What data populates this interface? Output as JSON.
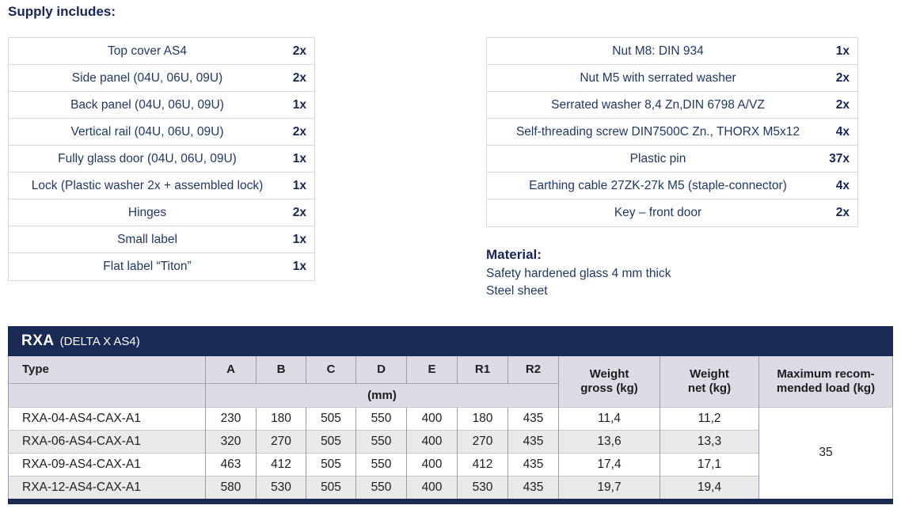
{
  "page": {
    "heading": "Supply includes:"
  },
  "supply": {
    "left_items": [
      {
        "label": "Top cover AS4",
        "qty": "2x"
      },
      {
        "label": "Side panel (04U, 06U, 09U)",
        "qty": "2x"
      },
      {
        "label": "Back panel (04U, 06U, 09U)",
        "qty": "1x"
      },
      {
        "label": "Vertical rail (04U, 06U, 09U)",
        "qty": "2x"
      },
      {
        "label": "Fully glass door (04U, 06U, 09U)",
        "qty": "1x"
      },
      {
        "label": "Lock (Plastic washer 2x + assembled lock)",
        "qty": "1x"
      },
      {
        "label": "Hinges",
        "qty": "2x"
      },
      {
        "label": "Small label",
        "qty": "1x"
      },
      {
        "label": "Flat label “Titon”",
        "qty": "1x"
      }
    ],
    "right_items": [
      {
        "label": "Nut M8: DIN 934",
        "qty": "1x"
      },
      {
        "label": "Nut M5 with serrated washer",
        "qty": "2x"
      },
      {
        "label": "Serrated washer 8,4 Zn,DIN 6798 A/VZ",
        "qty": "2x"
      },
      {
        "label": "Self-threading screw DIN7500C Zn., THORX M5x12",
        "qty": "4x"
      },
      {
        "label": "Plastic pin",
        "qty": "37x"
      },
      {
        "label": "Earthing cable 27ZK-27k M5 (staple-connector)",
        "qty": "4x"
      },
      {
        "label": "Key – front door",
        "qty": "2x"
      }
    ]
  },
  "material": {
    "heading": "Material:",
    "lines": [
      "Safety hardened glass 4 mm thick",
      "Steel sheet"
    ]
  },
  "spec_table": {
    "title": "RXA",
    "subtitle": "(DELTA X AS4)",
    "headers": {
      "type": "Type",
      "dims": [
        "A",
        "B",
        "C",
        "D",
        "E",
        "R1",
        "R2"
      ],
      "unit": "(mm)",
      "weight_gross_line1": "Weight",
      "weight_gross_line2": "gross (kg)",
      "weight_net_line1": "Weight",
      "weight_net_line2": "net (kg)",
      "max_load_line1": "Maximum recom-",
      "max_load_line2": "mended load (kg)"
    },
    "rows": [
      {
        "type": "RXA-04-AS4-CAX-A1",
        "dims": [
          "230",
          "180",
          "505",
          "550",
          "400",
          "180",
          "435"
        ],
        "weight_gross": "11,4",
        "weight_net": "11,2"
      },
      {
        "type": "RXA-06-AS4-CAX-A1",
        "dims": [
          "320",
          "270",
          "505",
          "550",
          "400",
          "270",
          "435"
        ],
        "weight_gross": "13,6",
        "weight_net": "13,3"
      },
      {
        "type": "RXA-09-AS4-CAX-A1",
        "dims": [
          "463",
          "412",
          "505",
          "550",
          "400",
          "412",
          "435"
        ],
        "weight_gross": "17,4",
        "weight_net": "17,1"
      },
      {
        "type": "RXA-12-AS4-CAX-A1",
        "dims": [
          "580",
          "530",
          "505",
          "550",
          "400",
          "530",
          "435"
        ],
        "weight_gross": "19,7",
        "weight_net": "19,4"
      }
    ],
    "max_load_value": "35"
  },
  "colors": {
    "navy": "#1b2a55",
    "text_navy": "#1f3864",
    "header_bg": "#dbdbe5",
    "row_alt": "#e9e9e9"
  }
}
